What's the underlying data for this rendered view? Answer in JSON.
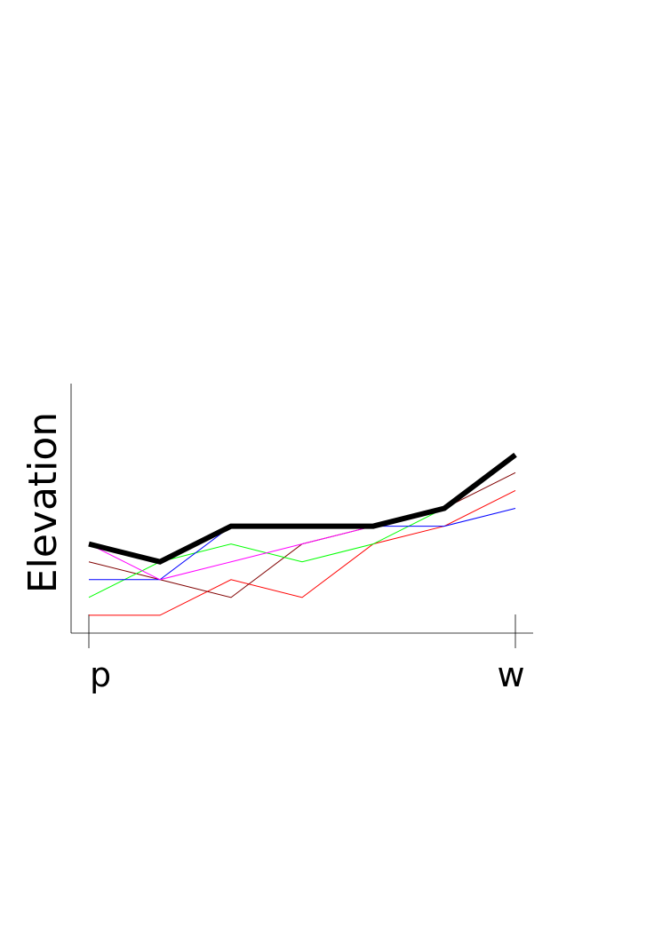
{
  "chart_data": {
    "type": "line",
    "title": "",
    "xlabel": "",
    "ylabel": "Elevation",
    "x": [
      0,
      1,
      2,
      3,
      4,
      5,
      6
    ],
    "xticks": [
      {
        "x": 0,
        "label": "p"
      },
      {
        "x": 6,
        "label": "w"
      }
    ],
    "xlim": [
      -0.25,
      6.25
    ],
    "ylim": [
      0,
      14
    ],
    "grid": false,
    "legend": "none",
    "series": [
      {
        "color": "#ff0000",
        "width": 1,
        "values": [
          1,
          1,
          3,
          2,
          5,
          6,
          8
        ]
      },
      {
        "color": "#800000",
        "width": 1,
        "values": [
          4,
          3,
          2,
          5,
          6,
          7,
          9
        ]
      },
      {
        "color": "#00ff00",
        "width": 1,
        "values": [
          2,
          4,
          5,
          4,
          5,
          7,
          10
        ]
      },
      {
        "color": "#0000ff",
        "width": 1,
        "values": [
          3,
          3,
          6,
          6,
          6,
          6,
          7
        ]
      },
      {
        "color": "#ff00ff",
        "width": 1,
        "values": [
          5,
          3,
          4,
          5,
          6,
          7,
          10
        ]
      },
      {
        "color": "#000000",
        "width": 6,
        "values": [
          5,
          4,
          6,
          6,
          6,
          7,
          10
        ]
      }
    ]
  }
}
